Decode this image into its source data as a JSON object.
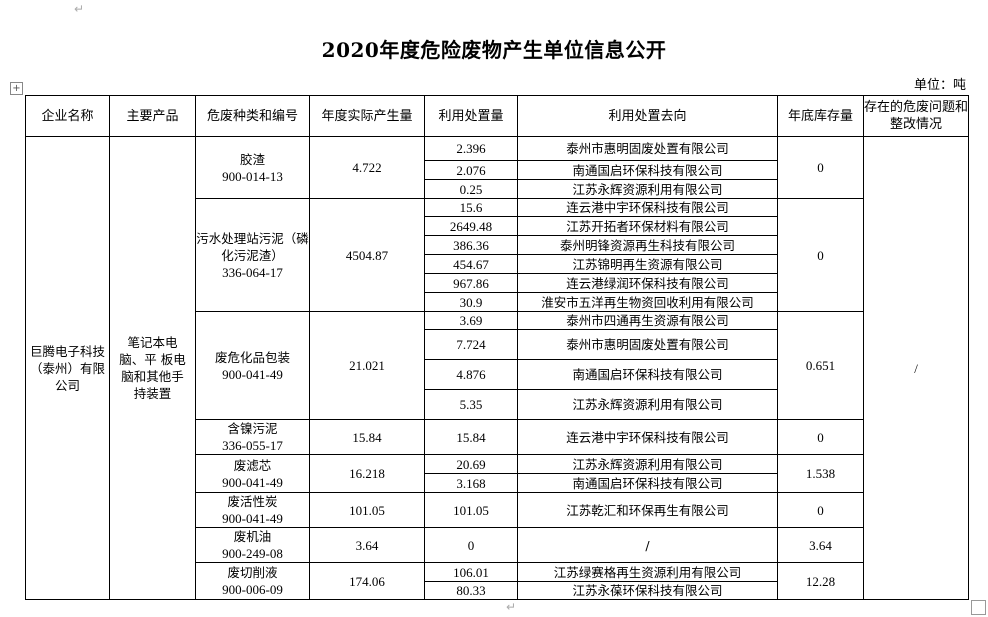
{
  "document": {
    "title": "2020年度危险废物产生单位信息公开",
    "unit": "单位：吨"
  },
  "table": {
    "headers": [
      "企业名称",
      "主要产品",
      "危废种类和编号",
      "年度实际产生量",
      "利用处置量",
      "利用处置去向",
      "年底库存量",
      "存在的危废问题和整改情况"
    ],
    "company": "巨腾电子科技（泰州）有限公司",
    "product": "笔记本电脑、平 板电脑和其他手持装置",
    "issues": "/",
    "groups": [
      {
        "waste": "胶渣",
        "code": "900-014-13",
        "generated": "4.722",
        "stock": "0",
        "disposals": [
          {
            "amount": "2.396",
            "dest": "泰州市惠明固废处置有限公司"
          },
          {
            "amount": "2.076",
            "dest": "南通国启环保科技有限公司"
          },
          {
            "amount": "0.25",
            "dest": "江苏永辉资源利用有限公司"
          }
        ]
      },
      {
        "waste": "污水处理站污泥（磷化污泥渣）",
        "code": "336-064-17",
        "generated": "4504.87",
        "stock": "0",
        "disposals": [
          {
            "amount": "15.6",
            "dest": "连云港中宇环保科技有限公司"
          },
          {
            "amount": "2649.48",
            "dest": "江苏开拓者环保材料有限公司"
          },
          {
            "amount": "386.36",
            "dest": "泰州明锋资源再生科技有限公司"
          },
          {
            "amount": "454.67",
            "dest": "江苏锦明再生资源有限公司"
          },
          {
            "amount": "967.86",
            "dest": "连云港绿润环保科技有限公司"
          },
          {
            "amount": "30.9",
            "dest": "淮安市五洋再生物资回收利用有限公司"
          }
        ]
      },
      {
        "waste": "废危化品包装",
        "code": "900-041-49",
        "generated": "21.021",
        "stock": "0.651",
        "disposals": [
          {
            "amount": "3.69",
            "dest": "泰州市四通再生资源有限公司"
          },
          {
            "amount": "7.724",
            "dest": "泰州市惠明固废处置有限公司"
          },
          {
            "amount": "4.876",
            "dest": "南通国启环保科技有限公司"
          },
          {
            "amount": "5.35",
            "dest": "江苏永辉资源利用有限公司"
          }
        ]
      },
      {
        "waste": "含镍污泥",
        "code": "336-055-17",
        "generated": "15.84",
        "stock": "0",
        "disposals": [
          {
            "amount": "15.84",
            "dest": "连云港中宇环保科技有限公司"
          }
        ]
      },
      {
        "waste": "废滤芯",
        "code": "900-041-49",
        "generated": "16.218",
        "stock": "1.538",
        "disposals": [
          {
            "amount": "20.69",
            "dest": "江苏永辉资源利用有限公司"
          },
          {
            "amount": "3.168",
            "dest": "南通国启环保科技有限公司"
          }
        ]
      },
      {
        "waste": "废活性炭",
        "code": "900-041-49",
        "generated": "101.05",
        "stock": "0",
        "disposals": [
          {
            "amount": "101.05",
            "dest": "江苏乾汇和环保再生有限公司"
          }
        ]
      },
      {
        "waste": "废机油",
        "code": "900-249-08",
        "generated": "3.64",
        "stock": "3.64",
        "disposals": [
          {
            "amount": "0",
            "dest": "/"
          }
        ]
      },
      {
        "waste": "废切削液",
        "code": "900-006-09",
        "generated": "174.06",
        "stock": "12.28",
        "disposals": [
          {
            "amount": "106.01",
            "dest": "江苏绿赛格再生资源利用有限公司"
          },
          {
            "amount": "80.33",
            "dest": "江苏永葆环保科技有限公司"
          }
        ]
      }
    ]
  }
}
